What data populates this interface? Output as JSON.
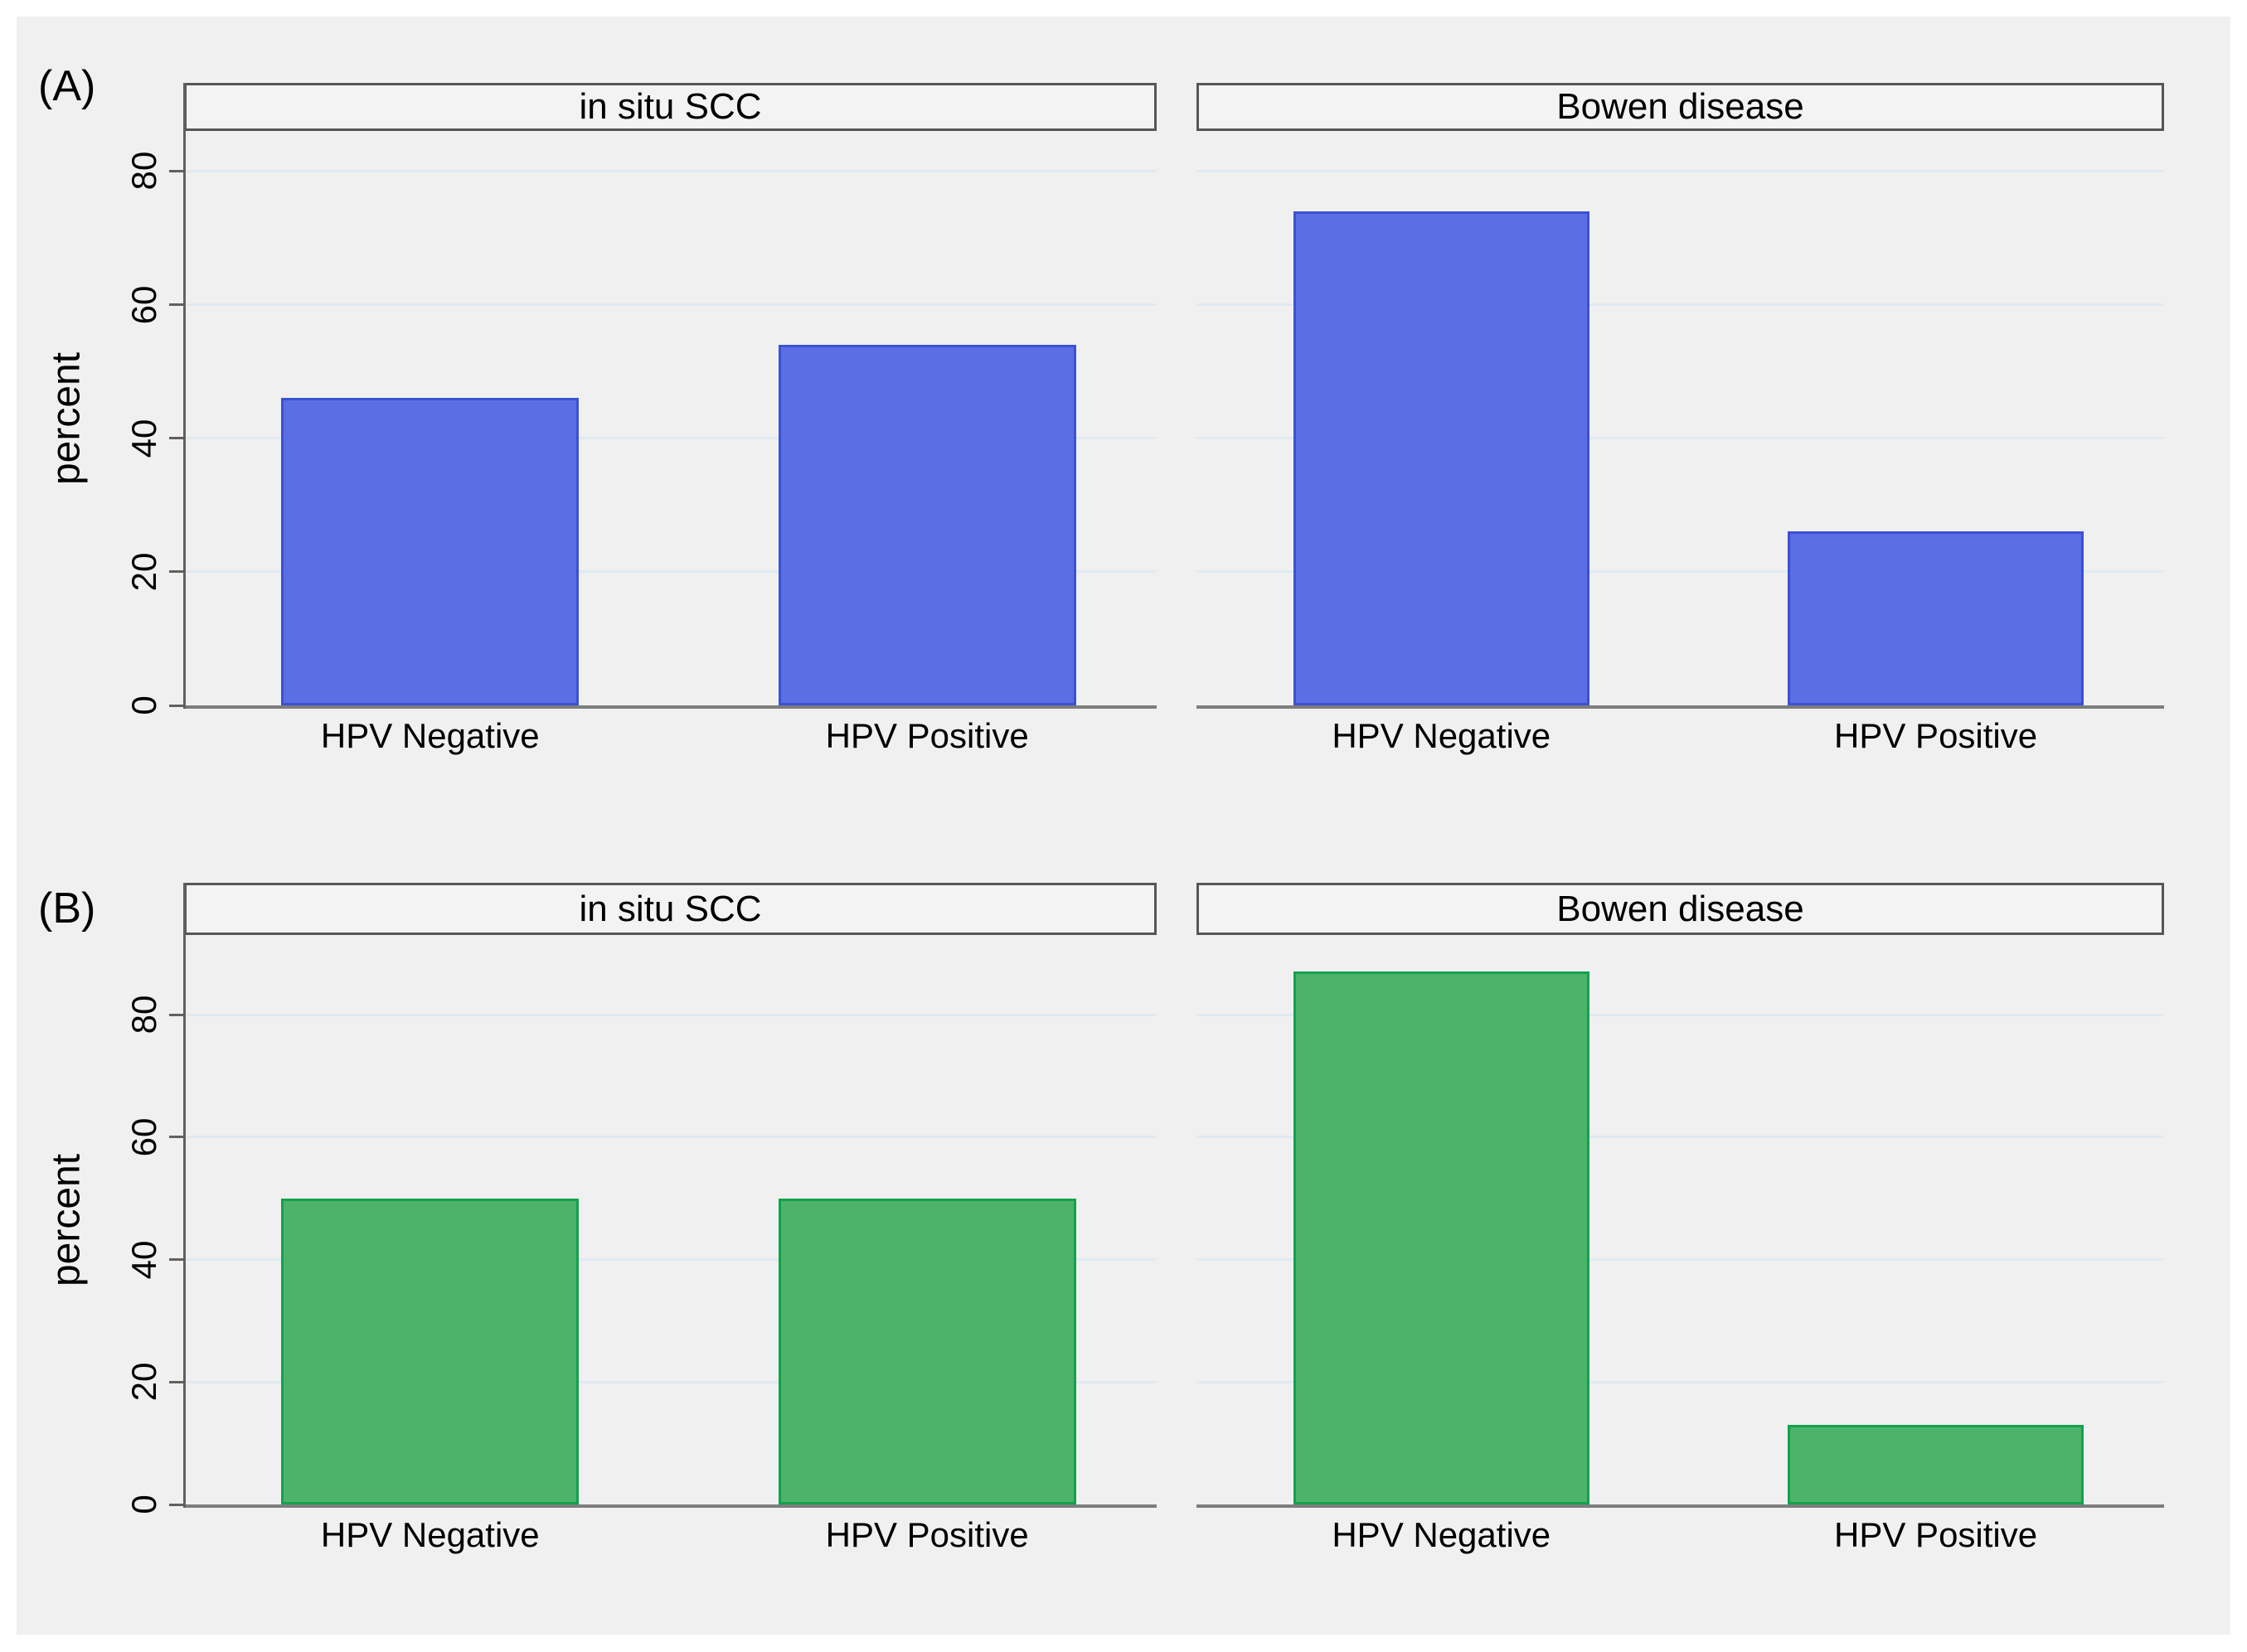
{
  "figure": {
    "row_labels": [
      "(A)",
      "(B)"
    ],
    "ylabel": "percent"
  },
  "colors": {
    "canvas_background": "#ffffff",
    "graph_background": "#f0f0f1",
    "title_box_background": "#f3f3f4",
    "title_box_border": "#565656",
    "gridline": "#dfe9f2",
    "axis_line": "#606060",
    "baseline": "#7d7d7d",
    "text": "#000000",
    "bar_blue_fill": "#5c6ee4",
    "bar_blue_border": "#3b51d4",
    "bar_green_fill": "#4db36a",
    "bar_green_border": "#12a24e"
  },
  "chart_data": [
    {
      "type": "bar",
      "row": "A",
      "row_label": "(A)",
      "title": "in situ SCC",
      "categories": [
        "HPV Negative",
        "HPV Positive"
      ],
      "values": [
        46,
        54
      ],
      "ylabel": "percent",
      "yticks": [
        0,
        20,
        40,
        60,
        80
      ],
      "ylim": [
        0,
        86
      ],
      "grid": true,
      "legend": "none",
      "bar_color": "#5c6ee4",
      "bar_border_color": "#3b51d4"
    },
    {
      "type": "bar",
      "row": "A",
      "row_label": "(A)",
      "title": "Bowen disease",
      "categories": [
        "HPV Negative",
        "HPV Positive"
      ],
      "values": [
        74,
        26
      ],
      "ylabel": "percent",
      "yticks": [
        0,
        20,
        40,
        60,
        80
      ],
      "ylim": [
        0,
        86
      ],
      "grid": true,
      "legend": "none",
      "bar_color": "#5c6ee4",
      "bar_border_color": "#3b51d4"
    },
    {
      "type": "bar",
      "row": "B",
      "row_label": "(B)",
      "title": "in situ SCC",
      "categories": [
        "HPV Negative",
        "HPV Positive"
      ],
      "values": [
        50,
        50
      ],
      "ylabel": "percent",
      "yticks": [
        0,
        20,
        40,
        60,
        80
      ],
      "ylim": [
        0,
        93
      ],
      "grid": true,
      "legend": "none",
      "bar_color": "#4db36a",
      "bar_border_color": "#12a24e"
    },
    {
      "type": "bar",
      "row": "B",
      "row_label": "(B)",
      "title": "Bowen disease",
      "categories": [
        "HPV Negative",
        "HPV Positive"
      ],
      "values": [
        87,
        13
      ],
      "ylabel": "percent",
      "yticks": [
        0,
        20,
        40,
        60,
        80
      ],
      "ylim": [
        0,
        93
      ],
      "grid": true,
      "legend": "none",
      "bar_color": "#4db36a",
      "bar_border_color": "#12a24e"
    }
  ]
}
